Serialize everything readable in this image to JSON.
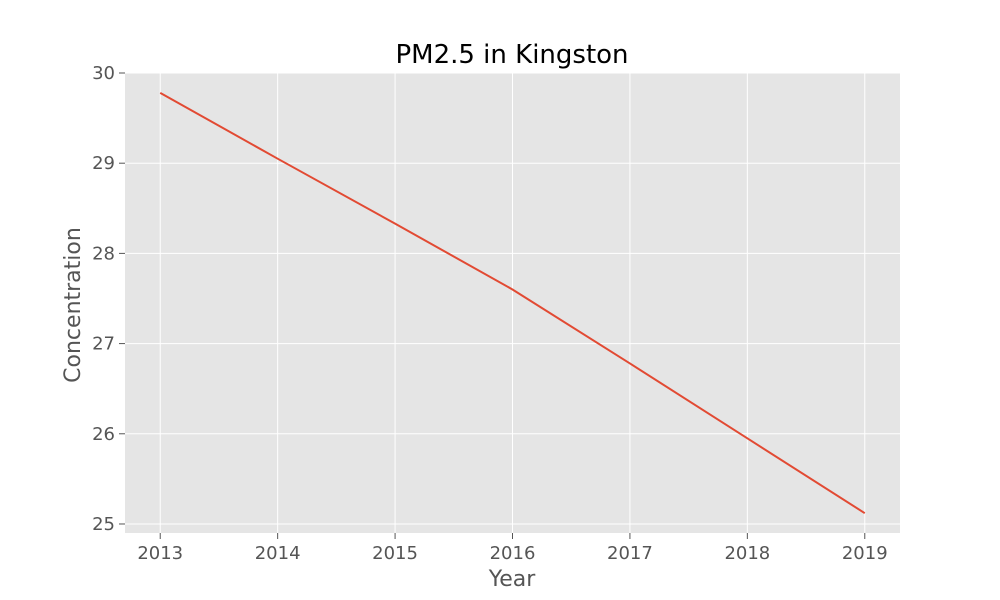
{
  "chart_data": {
    "type": "line",
    "title": "PM2.5 in Kingston",
    "xlabel": "Year",
    "ylabel": "Concentration",
    "x": [
      2013,
      2014,
      2015,
      2016,
      2017,
      2018,
      2019
    ],
    "series": [
      {
        "name": "PM2.5",
        "values": [
          29.78,
          29.05,
          28.33,
          27.6,
          26.78,
          25.95,
          25.12
        ]
      }
    ],
    "xlim": [
      2012.7,
      2019.3
    ],
    "ylim": [
      24.9,
      30.0
    ],
    "xticks": [
      "2013",
      "2014",
      "2015",
      "2016",
      "2017",
      "2018",
      "2019"
    ],
    "yticks": [
      "25",
      "26",
      "27",
      "28",
      "29",
      "30"
    ],
    "grid": true,
    "colors": {
      "line": "#E24A33",
      "plot_background": "#E5E5E5"
    }
  }
}
